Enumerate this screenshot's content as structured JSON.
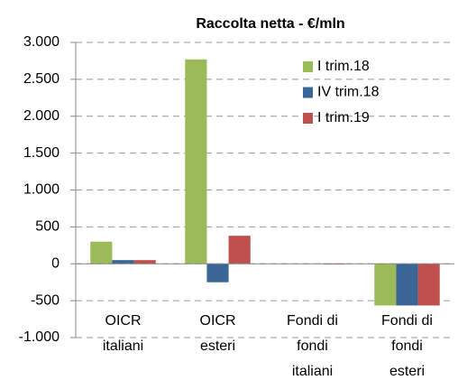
{
  "chart_data": {
    "type": "bar",
    "title": "Raccolta netta - €/mln",
    "categories": [
      [
        "OICR",
        "italiani"
      ],
      [
        "OICR",
        "esteri"
      ],
      [
        "Fondi di",
        "fondi",
        "italiani"
      ],
      [
        "Fondi di",
        "fondi",
        "esteri"
      ]
    ],
    "series": [
      {
        "name": "I trim.18",
        "color": "#9bbb59",
        "values": [
          300,
          2770,
          0,
          -565
        ]
      },
      {
        "name": "IV trim.18",
        "color": "#3a6597",
        "values": [
          50,
          -250,
          0,
          -565
        ]
      },
      {
        "name": "I trim.19",
        "color": "#c0504d",
        "values": [
          50,
          380,
          -10,
          -565
        ]
      }
    ],
    "ylim": [
      -1000,
      3000
    ],
    "yticks": [
      {
        "value": -1000,
        "label": "-1.000"
      },
      -500,
      0,
      500,
      {
        "value": 1000,
        "label": "1.000"
      },
      {
        "value": 1500,
        "label": "1.500"
      },
      {
        "value": 2000,
        "label": "2.000"
      },
      {
        "value": 2500,
        "label": "2.500"
      },
      {
        "value": 3000,
        "label": "3.000"
      }
    ],
    "grid": true,
    "legend": "top-right"
  }
}
